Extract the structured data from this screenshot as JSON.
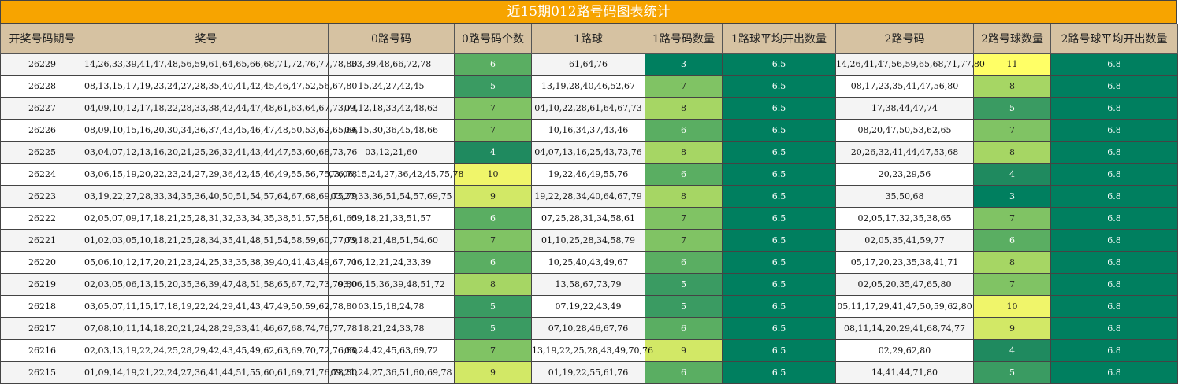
{
  "title": "近15期012路号码图表统计",
  "headers": [
    "开奖号码期号",
    "奖号",
    "0路号码",
    "0路号码个数",
    "1路球",
    "1路号码数量",
    "1路球平均开出数量",
    "2路号码",
    "2路号球数量",
    "2路号球平均开出数量"
  ],
  "rows": [
    {
      "issue": "26229",
      "numbers": "14,26,33,39,41,47,48,56,59,61,64,65,66,68,71,72,76,77,78,80",
      "r0": "33,39,48,66,72,78",
      "c0": "6",
      "r1": "61,64,76",
      "c1": "3",
      "avg1": "6.5",
      "r2": "14,26,41,47,56,59,65,68,71,77,80",
      "c2": "11",
      "avg2": "6.8"
    },
    {
      "issue": "26228",
      "numbers": "08,13,15,17,19,23,24,27,28,35,40,41,42,45,46,47,52,56,67,80",
      "r0": "15,24,27,42,45",
      "c0": "5",
      "r1": "13,19,28,40,46,52,67",
      "c1": "7",
      "avg1": "6.5",
      "r2": "08,17,23,35,41,47,56,80",
      "c2": "8",
      "avg2": "6.8"
    },
    {
      "issue": "26227",
      "numbers": "04,09,10,12,17,18,22,28,33,38,42,44,47,48,61,63,64,67,73,74",
      "r0": "09,12,18,33,42,48,63",
      "c0": "7",
      "r1": "04,10,22,28,61,64,67,73",
      "c1": "8",
      "avg1": "6.5",
      "r2": "17,38,44,47,74",
      "c2": "5",
      "avg2": "6.8"
    },
    {
      "issue": "26226",
      "numbers": "08,09,10,15,16,20,30,34,36,37,43,45,46,47,48,50,53,62,65,66",
      "r0": "09,15,30,36,45,48,66",
      "c0": "7",
      "r1": "10,16,34,37,43,46",
      "c1": "6",
      "avg1": "6.5",
      "r2": "08,20,47,50,53,62,65",
      "c2": "7",
      "avg2": "6.8"
    },
    {
      "issue": "26225",
      "numbers": "03,04,07,12,13,16,20,21,25,26,32,41,43,44,47,53,60,68,73,76",
      "r0": "03,12,21,60",
      "c0": "4",
      "r1": "04,07,13,16,25,43,73,76",
      "c1": "8",
      "avg1": "6.5",
      "r2": "20,26,32,41,44,47,53,68",
      "c2": "8",
      "avg2": "6.8"
    },
    {
      "issue": "26224",
      "numbers": "03,06,15,19,20,22,23,24,27,29,36,42,45,46,49,55,56,75,76,78",
      "r0": "03,06,15,24,27,36,42,45,75,78",
      "c0": "10",
      "r1": "19,22,46,49,55,76",
      "c1": "6",
      "avg1": "6.5",
      "r2": "20,23,29,56",
      "c2": "4",
      "avg2": "6.8"
    },
    {
      "issue": "26223",
      "numbers": "03,19,22,27,28,33,34,35,36,40,50,51,54,57,64,67,68,69,75,79",
      "r0": "03,27,33,36,51,54,57,69,75",
      "c0": "9",
      "r1": "19,22,28,34,40,64,67,79",
      "c1": "8",
      "avg1": "6.5",
      "r2": "35,50,68",
      "c2": "3",
      "avg2": "6.8"
    },
    {
      "issue": "26222",
      "numbers": "02,05,07,09,17,18,21,25,28,31,32,33,34,35,38,51,57,58,61,65",
      "r0": "09,18,21,33,51,57",
      "c0": "6",
      "r1": "07,25,28,31,34,58,61",
      "c1": "7",
      "avg1": "6.5",
      "r2": "02,05,17,32,35,38,65",
      "c2": "7",
      "avg2": "6.8"
    },
    {
      "issue": "26221",
      "numbers": "01,02,03,05,10,18,21,25,28,34,35,41,48,51,54,58,59,60,77,79",
      "r0": "03,18,21,48,51,54,60",
      "c0": "7",
      "r1": "01,10,25,28,34,58,79",
      "c1": "7",
      "avg1": "6.5",
      "r2": "02,05,35,41,59,77",
      "c2": "6",
      "avg2": "6.8"
    },
    {
      "issue": "26220",
      "numbers": "05,06,10,12,17,20,21,23,24,25,33,35,38,39,40,41,43,49,67,71",
      "r0": "06,12,21,24,33,39",
      "c0": "6",
      "r1": "10,25,40,43,49,67",
      "c1": "6",
      "avg1": "6.5",
      "r2": "05,17,20,23,35,38,41,71",
      "c2": "8",
      "avg2": "6.8"
    },
    {
      "issue": "26219",
      "numbers": "02,03,05,06,13,15,20,35,36,39,47,48,51,58,65,67,72,73,79,80",
      "r0": "03,06,15,36,39,48,51,72",
      "c0": "8",
      "r1": "13,58,67,73,79",
      "c1": "5",
      "avg1": "6.5",
      "r2": "02,05,20,35,47,65,80",
      "c2": "7",
      "avg2": "6.8"
    },
    {
      "issue": "26218",
      "numbers": "03,05,07,11,15,17,18,19,22,24,29,41,43,47,49,50,59,62,78,80",
      "r0": "03,15,18,24,78",
      "c0": "5",
      "r1": "07,19,22,43,49",
      "c1": "5",
      "avg1": "6.5",
      "r2": "05,11,17,29,41,47,50,59,62,80",
      "c2": "10",
      "avg2": "6.8"
    },
    {
      "issue": "26217",
      "numbers": "07,08,10,11,14,18,20,21,24,28,29,33,41,46,67,68,74,76,77,78",
      "r0": "18,21,24,33,78",
      "c0": "5",
      "r1": "07,10,28,46,67,76",
      "c1": "6",
      "avg1": "6.5",
      "r2": "08,11,14,20,29,41,68,74,77",
      "c2": "9",
      "avg2": "6.8"
    },
    {
      "issue": "26216",
      "numbers": "02,03,13,19,22,24,25,28,29,42,43,45,49,62,63,69,70,72,76,80",
      "r0": "03,24,42,45,63,69,72",
      "c0": "7",
      "r1": "13,19,22,25,28,43,49,70,76",
      "c1": "9",
      "avg1": "6.5",
      "r2": "02,29,62,80",
      "c2": "4",
      "avg2": "6.8"
    },
    {
      "issue": "26215",
      "numbers": "01,09,14,19,21,22,24,27,36,41,44,51,55,60,61,69,71,76,78,80",
      "r0": "09,21,24,27,36,51,60,69,78",
      "c0": "9",
      "r1": "01,19,22,55,61,76",
      "c1": "6",
      "avg1": "6.5",
      "r2": "14,41,44,71,80",
      "c2": "5",
      "avg2": "6.8"
    }
  ],
  "colors": {
    "title_bg": "#f7a400",
    "header_bg": "#d6c2a2",
    "avg_cell": "#007f5f",
    "scale": {
      "3": "#007f5f",
      "4": "#1f8a5f",
      "5": "#3a9b62",
      "6": "#5aae62",
      "7": "#80c364",
      "8": "#a6d664",
      "9": "#d2e866",
      "10": "#f0f56a",
      "11": "#ffff66"
    }
  }
}
